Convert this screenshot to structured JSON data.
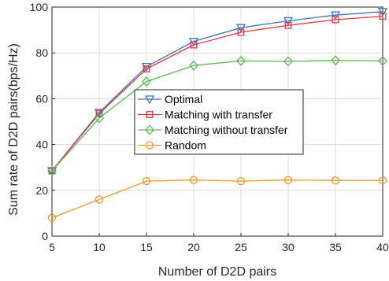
{
  "chart_data": {
    "type": "line",
    "title": "",
    "xlabel": "Number of D2D pairs",
    "ylabel": "Sum rate of D2D pairs(bps/Hz)",
    "x": [
      5,
      10,
      15,
      20,
      25,
      30,
      35,
      40
    ],
    "xlim": [
      5,
      40
    ],
    "ylim": [
      0,
      100
    ],
    "xticks": [
      5,
      10,
      15,
      20,
      25,
      30,
      35,
      40
    ],
    "yticks": [
      0,
      20,
      40,
      60,
      80,
      100
    ],
    "grid": true,
    "legend_position": "center",
    "series": [
      {
        "name": "Optimal",
        "values": [
          28.5,
          54.0,
          74.0,
          85.0,
          91.0,
          94.0,
          96.5,
          98.0
        ],
        "color": "#3b74c4",
        "marker": "triangle-down"
      },
      {
        "name": "Matching with transfer",
        "values": [
          28.5,
          53.5,
          73.0,
          83.5,
          89.0,
          92.0,
          94.5,
          96.0
        ],
        "color": "#e5323f",
        "marker": "square"
      },
      {
        "name": "Matching without transfer",
        "values": [
          28.5,
          51.5,
          67.5,
          74.5,
          76.5,
          76.3,
          76.7,
          76.5
        ],
        "color": "#5ab94e",
        "marker": "diamond"
      },
      {
        "name": "Random",
        "values": [
          8.0,
          16.0,
          24.0,
          24.5,
          24.0,
          24.5,
          24.3,
          24.3
        ],
        "color": "#f39a24",
        "marker": "circle"
      }
    ]
  }
}
